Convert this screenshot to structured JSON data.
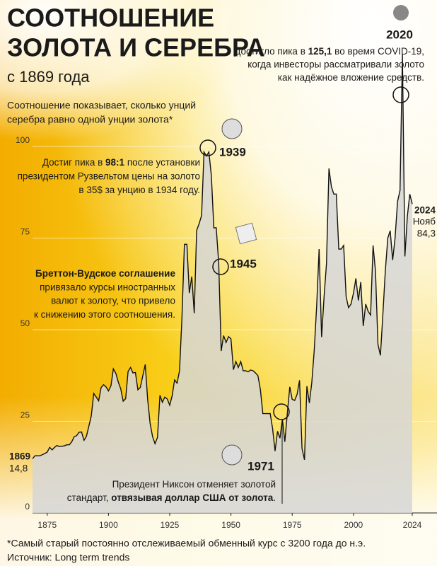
{
  "chart_data": {
    "type": "area",
    "title": [
      "СООТНОШЕНИЕ",
      "ЗОЛОТА И СЕРЕБРА"
    ],
    "subtitle": "с 1869 года",
    "description": [
      "Соотношение показывает, сколько унций",
      "серебра равно одной унции золота*"
    ],
    "x": [
      1869,
      1870,
      1871,
      1872,
      1873,
      1874,
      1875,
      1876,
      1877,
      1878,
      1879,
      1880,
      1881,
      1882,
      1883,
      1884,
      1885,
      1886,
      1887,
      1888,
      1889,
      1890,
      1891,
      1892,
      1893,
      1894,
      1895,
      1896,
      1897,
      1898,
      1899,
      1900,
      1901,
      1902,
      1903,
      1904,
      1905,
      1906,
      1907,
      1908,
      1909,
      1910,
      1911,
      1912,
      1913,
      1914,
      1915,
      1916,
      1917,
      1918,
      1919,
      1920,
      1921,
      1922,
      1923,
      1924,
      1925,
      1926,
      1927,
      1928,
      1929,
      1930,
      1931,
      1932,
      1933,
      1934,
      1935,
      1936,
      1937,
      1938,
      1939,
      1940,
      1941,
      1942,
      1943,
      1944,
      1945,
      1946,
      1947,
      1948,
      1949,
      1950,
      1951,
      1952,
      1953,
      1954,
      1955,
      1956,
      1957,
      1958,
      1959,
      1960,
      1961,
      1962,
      1963,
      1964,
      1965,
      1966,
      1967,
      1968,
      1969,
      1970,
      1971,
      1972,
      1973,
      1974,
      1975,
      1976,
      1977,
      1978,
      1979,
      1980,
      1981,
      1982,
      1983,
      1984,
      1985,
      1986,
      1987,
      1988,
      1989,
      1990,
      1991,
      1992,
      1993,
      1994,
      1995,
      1996,
      1997,
      1998,
      1999,
      2000,
      2001,
      2002,
      2003,
      2004,
      2005,
      2006,
      2007,
      2008,
      2009,
      2010,
      2011,
      2012,
      2013,
      2014,
      2015,
      2016,
      2017,
      2018,
      2019,
      2020,
      2021,
      2022,
      2023,
      2024
    ],
    "values": [
      14.8,
      15.6,
      15.6,
      15.6,
      15.9,
      16.2,
      16.6,
      17.9,
      17.2,
      17.9,
      18.4,
      18.1,
      18.2,
      18.3,
      18.6,
      18.6,
      19.4,
      20.8,
      21.1,
      22.0,
      22.1,
      19.8,
      20.9,
      23.7,
      26.5,
      32.6,
      31.6,
      30.6,
      34.2,
      35.0,
      34.4,
      33.3,
      34.7,
      39.3,
      38.1,
      35.7,
      33.9,
      30.5,
      31.2,
      38.6,
      39.7,
      38.2,
      38.3,
      33.6,
      34.2,
      37.4,
      40.5,
      31.0,
      24.4,
      20.8,
      18.9,
      20.6,
      32.1,
      30.2,
      31.6,
      31.1,
      29.4,
      32.0,
      36.3,
      35.4,
      38.8,
      53.2,
      73.3,
      73.3,
      60,
      64.5,
      54.5,
      77.1,
      78.9,
      81.2,
      98.5,
      97.4,
      98.5,
      92,
      77.8,
      77.8,
      68.1,
      44.2,
      48.4,
      46.5,
      48.1,
      47.5,
      39.1,
      41.3,
      39.7,
      41.3,
      38.8,
      38.8,
      38.5,
      39.0,
      38.8,
      38.2,
      37.5,
      33.7,
      27.1,
      27.1,
      27.1,
      27.1,
      23.0,
      16.9,
      22.3,
      20.4,
      25.6,
      19.4,
      27.1,
      34.4,
      31.0,
      30.7,
      32.4,
      36.2,
      17.6,
      14.5,
      34.6,
      30,
      35.7,
      44.4,
      56.8,
      72,
      48,
      59,
      68,
      94,
      89,
      87,
      87,
      72,
      72,
      73,
      59,
      56,
      57,
      60,
      64,
      58,
      63,
      51,
      57,
      55,
      54,
      73,
      66,
      46,
      43,
      54,
      66,
      75,
      77,
      69,
      75,
      85,
      88,
      125.1,
      70,
      81,
      87,
      84.3
    ],
    "color": "#111111",
    "fill": "#d6d6d6",
    "xlim": [
      1869,
      2024
    ],
    "xticks": [
      1875,
      1900,
      1925,
      1950,
      1975,
      2000,
      2024
    ],
    "ylim": [
      0,
      130
    ],
    "yticks": [
      0,
      25,
      50,
      75,
      100
    ],
    "grid": true,
    "start_label": [
      "1869",
      "14,8"
    ],
    "end_label": [
      "2024",
      "Нояб",
      "84,3"
    ],
    "events": [
      {
        "year": "2020",
        "lines": [
          [
            {
              "text": "Достигло пика в "
            },
            {
              "text": "125,1",
              "bold": true
            },
            {
              "text": " во время COVID-19,"
            }
          ],
          [
            {
              "text": "когда инвесторы рассматривали золото"
            }
          ],
          [
            {
              "text": "как надёжное вложение средств."
            }
          ]
        ]
      },
      {
        "year": "1939",
        "lines": [
          [
            {
              "text": "Достиг пика в "
            },
            {
              "text": "98:1",
              "bold": true
            },
            {
              "text": " после установки"
            }
          ],
          [
            {
              "text": "президентом Рузвельтом цены на золото"
            }
          ],
          [
            {
              "text": "в 35$ за унцию в 1934 году."
            }
          ]
        ]
      },
      {
        "year": "1945",
        "lines": [
          [
            {
              "text": "Бреттон-Вудское соглашение",
              "bold": true
            }
          ],
          [
            {
              "text": "привязало курсы иностранных"
            }
          ],
          [
            {
              "text": "валют к золоту, что привело"
            }
          ],
          [
            {
              "text": "к снижению этого соотношения."
            }
          ]
        ]
      },
      {
        "year": "1971",
        "lines": [
          [
            {
              "text": "Президент Никсон отменяет золотой"
            }
          ],
          [
            {
              "text": "стандарт, "
            },
            {
              "text": "отвязывая доллар США от золота",
              "bold": true
            },
            {
              "text": "."
            }
          ]
        ]
      }
    ],
    "footnote": [
      "*Самый старый постоянно отслеживаемый обменный курс с 3200 года до н.э.",
      "Источник: Long term trends"
    ]
  }
}
